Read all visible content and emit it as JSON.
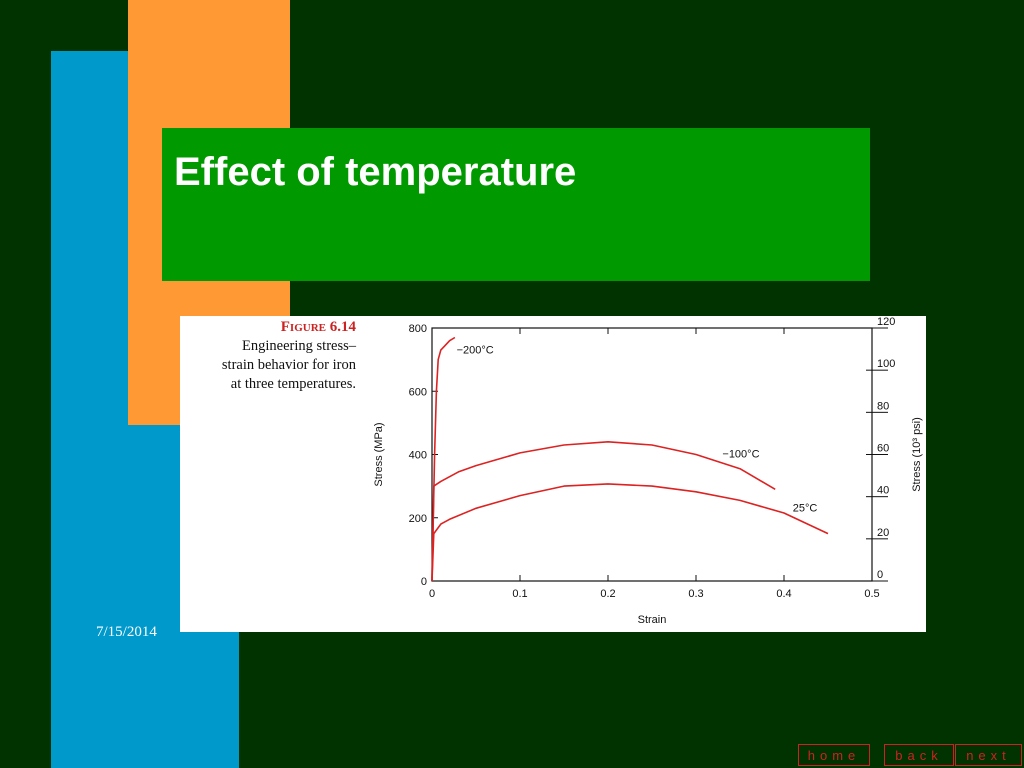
{
  "slide": {
    "title": "Effect of temperature",
    "date": "7/15/2014"
  },
  "figure": {
    "label": "Figure 6.14",
    "caption_lines": [
      "Engineering stress–",
      "strain behavior for iron",
      "at three temperatures."
    ]
  },
  "nav": {
    "home_label": "home",
    "back_label": "back",
    "next_label": "next"
  },
  "colors": {
    "background": "#003300",
    "blue_bar": "#0099cc",
    "orange_bar": "#ff9933",
    "title_band": "#009900",
    "curve": "#dd2222",
    "nav": "#cc2222"
  },
  "chart_data": {
    "type": "line",
    "xlabel": "Strain",
    "ylabel": "Stress (MPa)",
    "y2label": "Stress (10³ psi)",
    "xlim": [
      0,
      0.5
    ],
    "ylim": [
      0,
      800
    ],
    "y2lim": [
      0,
      120
    ],
    "xticks": [
      0,
      0.1,
      0.2,
      0.3,
      0.4,
      0.5
    ],
    "xtick_labels": [
      "0",
      "0.1",
      "0.2",
      "0.3",
      "0.4",
      "0.5"
    ],
    "yticks": [
      0,
      200,
      400,
      600,
      800
    ],
    "ytick_labels": [
      "0",
      "200",
      "400",
      "600",
      "800"
    ],
    "y2ticks": [
      0,
      20,
      40,
      60,
      80,
      100,
      120
    ],
    "y2tick_labels": [
      "0",
      "20",
      "40",
      "60",
      "80",
      "100",
      "120"
    ],
    "grid": false,
    "series": [
      {
        "name": "−200°C",
        "label_at": [
          0.028,
          720
        ],
        "x": [
          0,
          0.003,
          0.005,
          0.007,
          0.01,
          0.015,
          0.02,
          0.026
        ],
        "y": [
          0,
          400,
          600,
          700,
          730,
          745,
          760,
          770
        ]
      },
      {
        "name": "−100°C",
        "label_at": [
          0.33,
          390
        ],
        "x": [
          0,
          0.002,
          0.01,
          0.03,
          0.05,
          0.1,
          0.15,
          0.2,
          0.25,
          0.3,
          0.35,
          0.39
        ],
        "y": [
          0,
          300,
          315,
          345,
          365,
          405,
          430,
          440,
          430,
          400,
          355,
          290
        ]
      },
      {
        "name": "25°C",
        "label_at": [
          0.41,
          220
        ],
        "x": [
          0,
          0.002,
          0.01,
          0.02,
          0.05,
          0.1,
          0.15,
          0.2,
          0.25,
          0.3,
          0.35,
          0.4,
          0.45
        ],
        "y": [
          0,
          150,
          180,
          195,
          230,
          270,
          300,
          307,
          300,
          282,
          255,
          215,
          150
        ]
      }
    ]
  }
}
